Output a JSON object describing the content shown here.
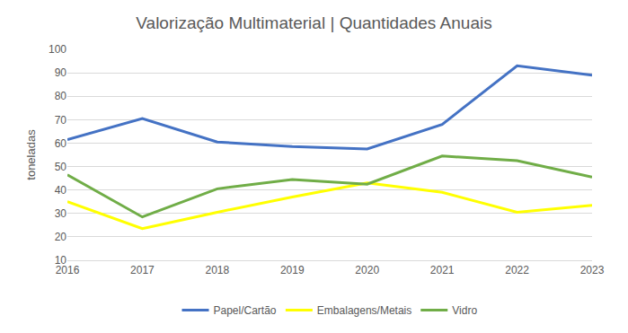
{
  "chart_data": {
    "type": "line",
    "title": "Valorização Multimaterial | Quantidades Anuais",
    "y_label": "toneladas",
    "categories": [
      "2016",
      "2017",
      "2018",
      "2019",
      "2020",
      "2021",
      "2022",
      "2023"
    ],
    "series": [
      {
        "name": "Papel/Cartão",
        "color": "#4472c4",
        "values": [
          61.5,
          70.5,
          60.5,
          58.5,
          57.5,
          68,
          93,
          89
        ]
      },
      {
        "name": "Embalagens/Metais",
        "color": "#ffff00",
        "values": [
          35,
          23.5,
          30.5,
          37,
          43,
          39,
          30.5,
          33.5
        ]
      },
      {
        "name": "Vidro",
        "color": "#70ad47",
        "values": [
          46.5,
          28.5,
          40.5,
          44.5,
          42.5,
          54.5,
          52.5,
          45.5
        ]
      }
    ],
    "ylim": [
      10,
      100
    ],
    "yticks": [
      10,
      20,
      30,
      40,
      50,
      60,
      70,
      80,
      90,
      100
    ],
    "grid": true,
    "legend": "bottom"
  }
}
